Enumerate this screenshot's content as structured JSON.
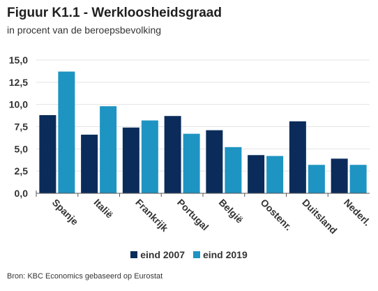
{
  "title": "Figuur K1.1 - Werkloosheidsgraad",
  "subtitle": "in procent van de beroepsbevolking",
  "source": "Bron: KBC Economics gebaseerd op Eurostat",
  "colors": {
    "eind_2007": "#0b2c5a",
    "eind_2019": "#1e94c2"
  },
  "chart_data": {
    "type": "bar",
    "categories": [
      "Spanje",
      "Italië",
      "Frankrijk",
      "Portugal",
      "België",
      "Oostenr.",
      "Duitsland",
      "Nederl."
    ],
    "series": [
      {
        "name": "eind 2007",
        "values": [
          8.8,
          6.6,
          7.4,
          8.7,
          7.1,
          4.3,
          8.1,
          3.9
        ]
      },
      {
        "name": "eind 2019",
        "values": [
          13.7,
          9.8,
          8.2,
          6.7,
          5.2,
          4.2,
          3.2,
          3.2
        ]
      }
    ],
    "yticks": [
      "0,0",
      "2,5",
      "5,0",
      "7,5",
      "10,0",
      "12,5",
      "15,0"
    ],
    "ylim": [
      0,
      15
    ],
    "grid": true,
    "legend": "bottom"
  }
}
